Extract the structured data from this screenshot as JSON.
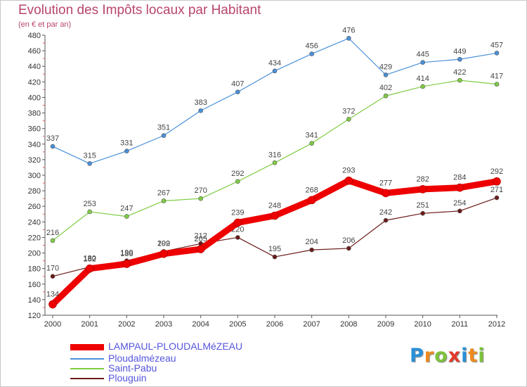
{
  "header": {
    "title": "Evolution des Impôts locaux par Habitant",
    "subtitle": "(en € et par an)"
  },
  "chart_data": {
    "type": "line",
    "title": "Evolution des Impôts locaux par Habitant",
    "subtitle": "(en € et par an)",
    "xlabel": "",
    "ylabel": "",
    "x": [
      "2000",
      "2001",
      "2002",
      "2003",
      "2004",
      "2005",
      "2006",
      "2007",
      "2008",
      "2009",
      "2010",
      "2011",
      "2012"
    ],
    "ylim": [
      120,
      480
    ],
    "yticks": [
      120,
      140,
      160,
      180,
      200,
      220,
      240,
      260,
      280,
      300,
      320,
      340,
      360,
      380,
      400,
      420,
      440,
      460,
      480
    ],
    "grid": false,
    "legend_position": "bottom-left",
    "series": [
      {
        "name": "LAMPAUL-PLOUDALMéZEAU",
        "color": "#ee0000",
        "values": [
          134,
          180,
          186,
          199,
          205,
          239,
          248,
          268,
          293,
          277,
          282,
          284,
          292
        ]
      },
      {
        "name": "Ploudalmézeau",
        "color": "#4a90d9",
        "values": [
          337,
          315,
          331,
          351,
          383,
          407,
          434,
          456,
          476,
          429,
          445,
          449,
          457
        ]
      },
      {
        "name": "Saint-Pabu",
        "color": "#7fcc44",
        "values": [
          216,
          253,
          247,
          267,
          270,
          292,
          316,
          341,
          372,
          402,
          414,
          422,
          417
        ]
      },
      {
        "name": "Plouguin",
        "color": "#6b1a1a",
        "values": [
          170,
          182,
          190,
          202,
          212,
          220,
          195,
          204,
          206,
          242,
          251,
          254,
          271
        ]
      }
    ]
  },
  "logo": {
    "letters": [
      "P",
      "r",
      "o",
      "x",
      "i",
      "t",
      "i"
    ],
    "colors": [
      "#2a8fd8",
      "#f08a1c",
      "#7cc23a",
      "#e23a2a",
      "#2a8fd8",
      "#f08a1c",
      "#7cc23a"
    ]
  }
}
